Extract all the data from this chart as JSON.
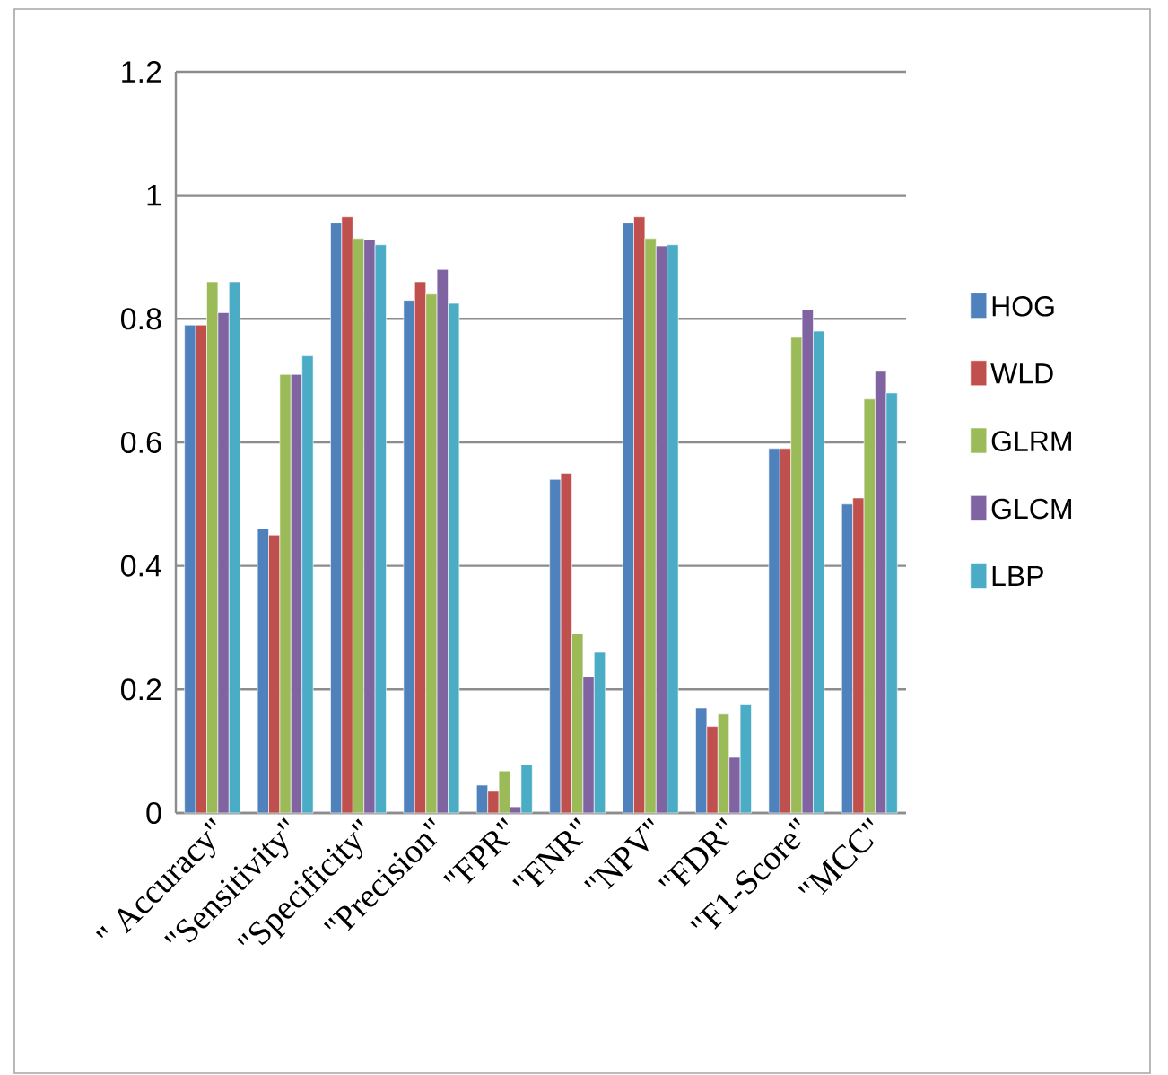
{
  "chart_data": {
    "type": "bar",
    "categories": [
      "\" Accuracy\"",
      "\"Sensitivity\"",
      "\"Specificity\"",
      "\"Precision\"",
      "\"FPR\"",
      "\"FNR\"",
      "\"NPV\"",
      "\"FDR\"",
      "\"F1-Score\"",
      "\"MCC\""
    ],
    "series": [
      {
        "name": "HOG",
        "color": "#4f81bd",
        "values": [
          0.79,
          0.46,
          0.955,
          0.83,
          0.045,
          0.54,
          0.955,
          0.17,
          0.59,
          0.5
        ]
      },
      {
        "name": "WLD",
        "color": "#c0504d",
        "values": [
          0.79,
          0.45,
          0.965,
          0.86,
          0.035,
          0.55,
          0.965,
          0.14,
          0.59,
          0.51
        ]
      },
      {
        "name": "GLRM",
        "color": "#9bbb59",
        "values": [
          0.86,
          0.71,
          0.93,
          0.84,
          0.068,
          0.29,
          0.93,
          0.16,
          0.77,
          0.67
        ]
      },
      {
        "name": "GLCM",
        "color": "#8064a2",
        "values": [
          0.81,
          0.71,
          0.928,
          0.88,
          0.01,
          0.22,
          0.918,
          0.09,
          0.815,
          0.715
        ]
      },
      {
        "name": "LBP",
        "color": "#4bacc6",
        "values": [
          0.86,
          0.74,
          0.92,
          0.825,
          0.078,
          0.26,
          0.92,
          0.175,
          0.78,
          0.68
        ]
      }
    ],
    "ylim": [
      0,
      1.2
    ],
    "yticks": [
      0,
      0.2,
      0.4,
      0.6,
      0.8,
      1,
      1.2
    ],
    "grid": "y",
    "legend": "right"
  }
}
